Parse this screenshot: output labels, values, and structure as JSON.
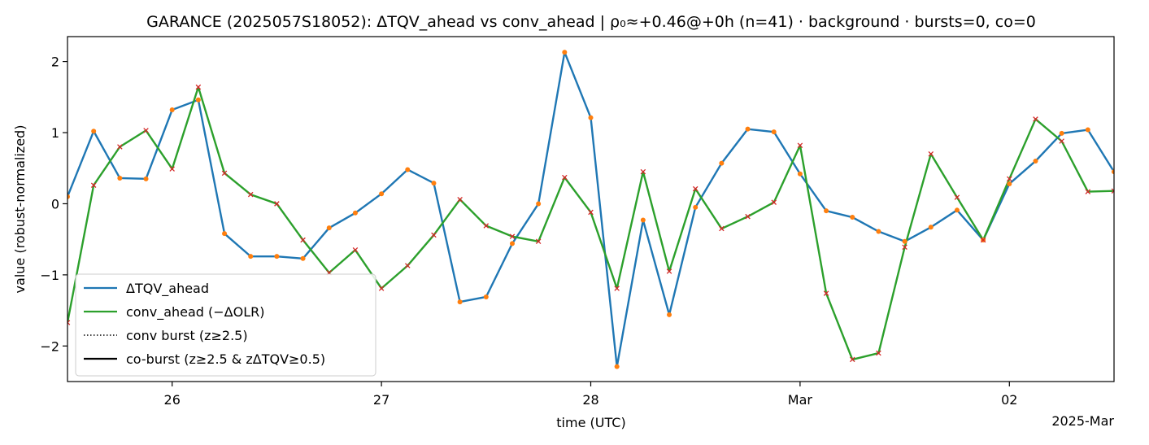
{
  "chart_data": {
    "type": "line",
    "title": "GARANCE (2025057S18052): ΔTQV_ahead vs conv_ahead | ρ₀≈+0.46@+0h (n=41) · background · bursts=0, co=0",
    "xlabel": "time (UTC)",
    "ylabel": "value (robust-normalized)",
    "x_offset_label": "2025-Mar",
    "xlim": [
      "2025-02-25 12:00",
      "2025-03-02 12:00"
    ],
    "ylim": [
      -2.5,
      2.35
    ],
    "x_ticks": [
      {
        "t": "2025-02-26 00:00",
        "label": "26"
      },
      {
        "t": "2025-02-27 00:00",
        "label": "27"
      },
      {
        "t": "2025-02-28 00:00",
        "label": "28"
      },
      {
        "t": "2025-03-01 00:00",
        "label": "Mar"
      },
      {
        "t": "2025-03-02 00:00",
        "label": "02"
      }
    ],
    "y_ticks": [
      {
        "v": 2,
        "label": "2"
      },
      {
        "v": 1,
        "label": "1"
      },
      {
        "v": 0,
        "label": "0"
      },
      {
        "v": -1,
        "label": "−1"
      },
      {
        "v": -2,
        "label": "−2"
      }
    ],
    "grid": false,
    "legend_position": "lower-left",
    "x": [
      "2025-02-25 12:00",
      "2025-02-25 15:00",
      "2025-02-25 18:00",
      "2025-02-25 21:00",
      "2025-02-26 00:00",
      "2025-02-26 03:00",
      "2025-02-26 06:00",
      "2025-02-26 09:00",
      "2025-02-26 12:00",
      "2025-02-26 15:00",
      "2025-02-26 18:00",
      "2025-02-26 21:00",
      "2025-02-27 00:00",
      "2025-02-27 03:00",
      "2025-02-27 06:00",
      "2025-02-27 09:00",
      "2025-02-27 12:00",
      "2025-02-27 15:00",
      "2025-02-27 18:00",
      "2025-02-27 21:00",
      "2025-02-28 00:00",
      "2025-02-28 03:00",
      "2025-02-28 06:00",
      "2025-02-28 09:00",
      "2025-02-28 12:00",
      "2025-02-28 15:00",
      "2025-02-28 18:00",
      "2025-02-28 21:00",
      "2025-03-01 00:00",
      "2025-03-01 03:00",
      "2025-03-01 06:00",
      "2025-03-01 09:00",
      "2025-03-01 12:00",
      "2025-03-01 15:00",
      "2025-03-01 18:00",
      "2025-03-01 21:00",
      "2025-03-02 00:00",
      "2025-03-02 03:00",
      "2025-03-02 06:00",
      "2025-03-02 09:00",
      "2025-03-02 12:00"
    ],
    "series": [
      {
        "name": "ΔTQV_ahead",
        "color": "#1f77b4",
        "values": [
          0.1,
          1.02,
          0.36,
          0.35,
          1.32,
          1.46,
          -0.42,
          -0.74,
          -0.74,
          -0.77,
          -0.34,
          -0.13,
          0.14,
          0.48,
          0.29,
          -1.38,
          -1.31,
          -0.56,
          0.0,
          2.13,
          1.21,
          -2.29,
          -0.23,
          -1.56,
          -0.05,
          0.57,
          1.05,
          1.01,
          0.42,
          -0.1,
          -0.19,
          -0.39,
          -0.53,
          -0.33,
          -0.09,
          -0.51,
          0.28,
          0.6,
          0.99,
          1.04,
          0.45
        ]
      },
      {
        "name": "conv_ahead (−ΔOLR)",
        "color": "#2ca02c",
        "values": [
          -1.67,
          0.26,
          0.8,
          1.03,
          0.49,
          1.64,
          0.43,
          0.13,
          0.0,
          -0.51,
          -0.97,
          -0.65,
          -1.19,
          -0.87,
          -0.44,
          0.06,
          -0.31,
          -0.46,
          -0.53,
          0.37,
          -0.12,
          -1.19,
          0.45,
          -0.95,
          0.21,
          -0.35,
          -0.18,
          0.02,
          0.82,
          -1.26,
          -2.19,
          -2.1,
          -0.61,
          0.7,
          0.09,
          -0.51,
          0.35,
          1.19,
          0.88,
          0.17,
          0.18
        ]
      }
    ],
    "point_markers": {
      "tqv_marker_color": "#ff7f0e",
      "conv_marker_color": "#d62728"
    },
    "legend": [
      {
        "label": "ΔTQV_ahead",
        "color": "#1f77b4",
        "style": "solid"
      },
      {
        "label": "conv_ahead (−ΔOLR)",
        "color": "#2ca02c",
        "style": "solid"
      },
      {
        "label": "conv burst (z≥2.5)",
        "color": "#000000",
        "style": "dotted"
      },
      {
        "label": "co-burst (z≥2.5 & zΔTQV≥0.5)",
        "color": "#000000",
        "style": "solid"
      }
    ]
  }
}
